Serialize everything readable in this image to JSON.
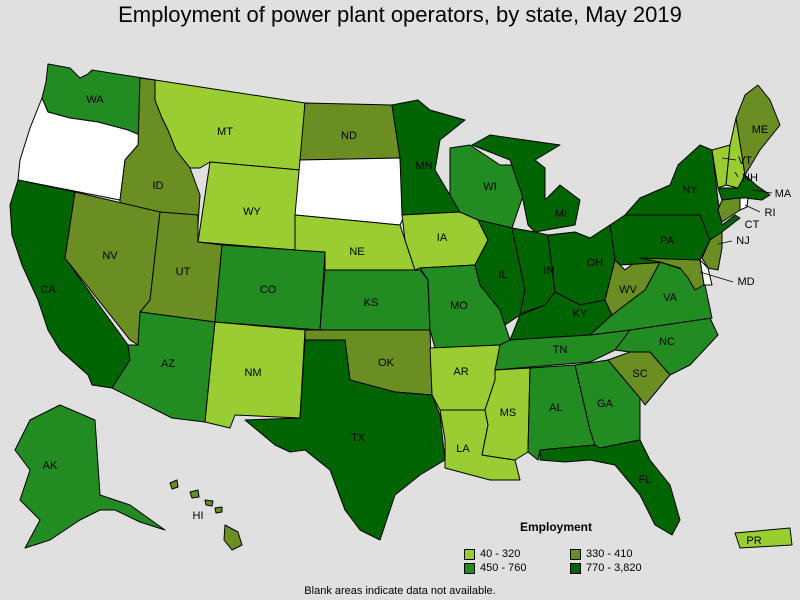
{
  "title": "Employment of power plant operators, by state, May 2019",
  "colors": {
    "background": "#e0e0e0",
    "c1": "#9acd32",
    "c2": "#6b8e23",
    "c3": "#228b22",
    "c4": "#006400",
    "nodata": "#ffffff"
  },
  "legend": {
    "title": "Employment",
    "items": [
      {
        "label": "40 - 320",
        "class": "c1"
      },
      {
        "label": "330 - 410",
        "class": "c2"
      },
      {
        "label": "450 - 760",
        "class": "c3"
      },
      {
        "label": "770 - 3,820",
        "class": "c4"
      }
    ]
  },
  "states": {
    "WA": "c3",
    "OR": "nodata",
    "CA": "c4",
    "ID": "c2",
    "NV": "c2",
    "MT": "c1",
    "WY": "c1",
    "UT": "c2",
    "AZ": "c3",
    "CO": "c3",
    "NM": "c1",
    "ND": "c2",
    "SD": "nodata",
    "NE": "c1",
    "KS": "c3",
    "OK": "c2",
    "TX": "c4",
    "MN": "c4",
    "IA": "c1",
    "MO": "c3",
    "AR": "c1",
    "LA": "c1",
    "WI": "c3",
    "IL": "c4",
    "MI": "c4",
    "IN": "c4",
    "OH": "c4",
    "KY": "c4",
    "TN": "c3",
    "MS": "c1",
    "AL": "c3",
    "GA": "c3",
    "FL": "c4",
    "SC": "c2",
    "NC": "c3",
    "VA": "c3",
    "WV": "c2",
    "PA": "c4",
    "NY": "c4",
    "ME": "c2",
    "VT": "c1",
    "NH": "c1",
    "MA": "c4",
    "RI": "nodata",
    "CT": "c2",
    "NJ": "c2",
    "MD": "c2",
    "DE": "nodata",
    "AK": "c3",
    "HI": "c2",
    "PR": "c1"
  },
  "labels": {
    "WA": "WA",
    "ID": "ID",
    "NV": "NV",
    "CA": "CA",
    "MT": "MT",
    "WY": "WY",
    "UT": "UT",
    "AZ": "AZ",
    "CO": "CO",
    "NM": "NM",
    "ND": "ND",
    "NE": "NE",
    "KS": "KS",
    "OK": "OK",
    "TX": "TX",
    "MN": "MN",
    "IA": "IA",
    "MO": "MO",
    "AR": "AR",
    "LA": "LA",
    "WI": "WI",
    "IL": "IL",
    "MI": "MI",
    "IN": "IN",
    "OH": "OH",
    "KY": "KY",
    "TN": "TN",
    "MS": "MS",
    "AL": "AL",
    "GA": "GA",
    "FL": "FL",
    "SC": "SC",
    "NC": "NC",
    "VA": "VA",
    "WV": "WV",
    "PA": "PA",
    "NY": "NY",
    "ME": "ME",
    "VT": "VT",
    "NH": "NH",
    "MA": "MA",
    "RI": "RI",
    "CT": "CT",
    "NJ": "NJ",
    "MD": "MD",
    "AK": "AK",
    "HI": "HI",
    "PR": "PR"
  },
  "footnote": "Blank areas indicate data not available."
}
